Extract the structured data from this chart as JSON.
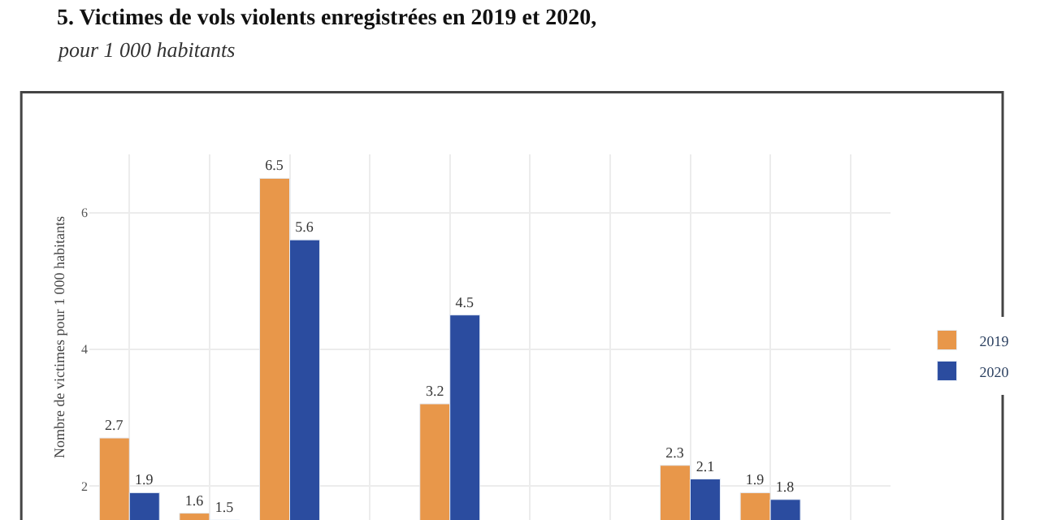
{
  "chart_data": {
    "type": "bar",
    "title": "5. Victimes de vols violents enregistrées en 2019 et 2020,",
    "subtitle": "pour 1 000 habitants",
    "ylabel": "Nombre de victimes pour 1 000 habitants",
    "categories": [
      null,
      null,
      null,
      null,
      null,
      null,
      null,
      null,
      null,
      null
    ],
    "series": [
      {
        "name": "2019",
        "color": "#e8974a",
        "values": [
          2.7,
          1.6,
          6.5,
          null,
          3.2,
          null,
          null,
          2.3,
          1.9,
          null
        ]
      },
      {
        "name": "2020",
        "color": "#2b4c9f",
        "values": [
          1.9,
          1.5,
          5.6,
          null,
          4.5,
          null,
          null,
          2.1,
          1.8,
          null
        ]
      }
    ],
    "ylim": [
      1.5,
      6.85
    ],
    "yticks": [
      2,
      4,
      6
    ],
    "grid": true,
    "legend": "right",
    "data_labels": true,
    "tick_labels": "y"
  }
}
